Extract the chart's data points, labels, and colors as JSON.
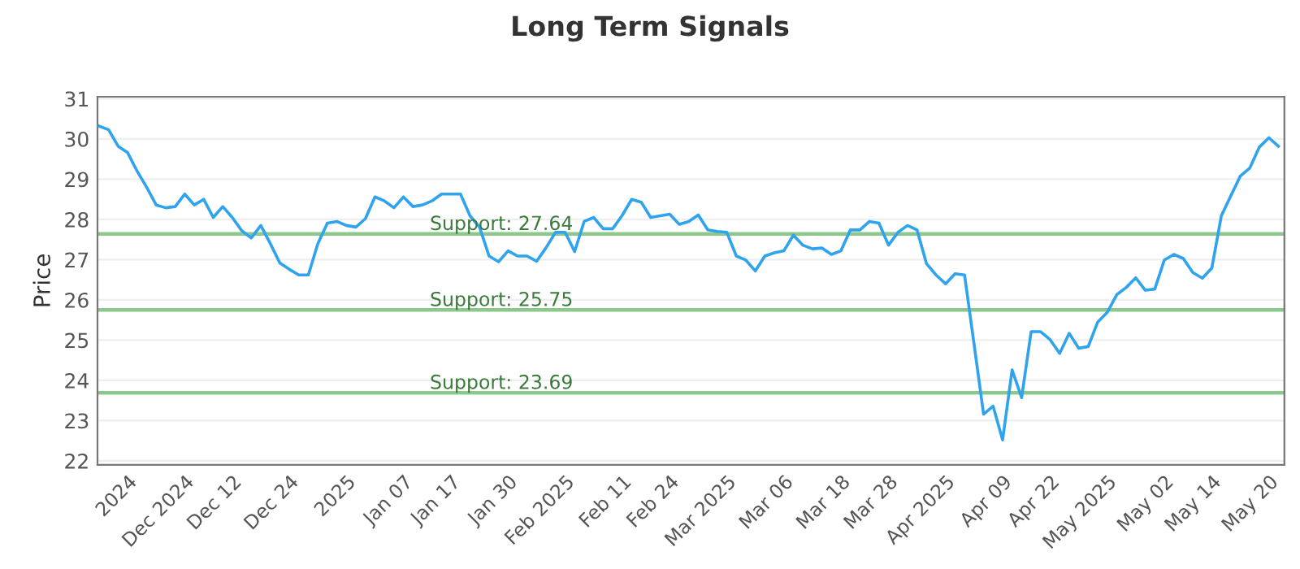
{
  "chart_data": {
    "type": "line",
    "title": "Long Term Signals",
    "ylabel": "Price",
    "categories": [
      null,
      null,
      null,
      "2024",
      null,
      null,
      null,
      null,
      null,
      "Dec 2024",
      null,
      null,
      null,
      null,
      "Dec 12",
      null,
      null,
      null,
      null,
      null,
      "Dec 24",
      null,
      null,
      null,
      null,
      null,
      "2025",
      null,
      null,
      null,
      null,
      null,
      "Jan 07",
      null,
      null,
      null,
      null,
      "Jan 17",
      null,
      null,
      null,
      null,
      null,
      "Jan 30",
      null,
      null,
      null,
      null,
      null,
      "Feb 2025",
      null,
      null,
      null,
      null,
      null,
      "Feb 11",
      null,
      null,
      null,
      null,
      "Feb 24",
      null,
      null,
      null,
      null,
      null,
      "Mar 2025",
      null,
      null,
      null,
      null,
      null,
      "Mar 06",
      null,
      null,
      null,
      null,
      null,
      "Mar 18",
      null,
      null,
      null,
      null,
      "Mar 28",
      null,
      null,
      null,
      null,
      null,
      "Apr 2025",
      null,
      null,
      null,
      null,
      null,
      "Apr 09",
      null,
      null,
      null,
      null,
      "Apr 22",
      null,
      null,
      null,
      null,
      null,
      "May 2025",
      null,
      null,
      null,
      null,
      null,
      "May 02",
      null,
      null,
      null,
      null,
      "May 14",
      null,
      null,
      null,
      null,
      null,
      "May 20",
      null
    ],
    "series": [
      {
        "color": "#2fa3ee",
        "values": [
          30.32,
          30.23,
          29.82,
          29.66,
          29.2,
          28.8,
          28.36,
          28.29,
          28.32,
          28.63,
          28.36,
          28.5,
          28.05,
          28.32,
          28.05,
          27.72,
          27.54,
          27.85,
          27.4,
          26.92,
          26.76,
          26.62,
          26.62,
          27.4,
          27.91,
          27.95,
          27.85,
          27.81,
          28.02,
          28.56,
          28.46,
          28.29,
          28.56,
          28.32,
          28.36,
          28.46,
          28.63,
          28.63,
          28.63,
          28.09,
          27.81,
          27.09,
          26.95,
          27.22,
          27.09,
          27.09,
          26.96,
          27.3,
          27.68,
          27.68,
          27.2,
          27.95,
          28.05,
          27.77,
          27.77,
          28.1,
          28.5,
          28.43,
          28.05,
          28.09,
          28.13,
          27.88,
          27.95,
          28.11,
          27.74,
          27.7,
          27.68,
          27.09,
          26.99,
          26.72,
          27.09,
          27.17,
          27.22,
          27.61,
          27.36,
          27.27,
          27.29,
          27.13,
          27.22,
          27.74,
          27.74,
          27.95,
          27.91,
          27.36,
          27.68,
          27.85,
          27.74,
          26.9,
          26.62,
          26.4,
          26.65,
          26.62,
          24.9,
          23.16,
          23.36,
          22.52,
          24.26,
          23.57,
          25.21,
          25.21,
          25.01,
          24.67,
          25.17,
          24.8,
          24.84,
          25.45,
          25.69,
          26.13,
          26.31,
          26.55,
          26.24,
          26.27,
          26.99,
          27.13,
          27.03,
          26.68,
          26.54,
          26.79,
          28.09,
          28.59,
          29.08,
          29.28,
          29.8,
          30.03,
          29.82
        ]
      }
    ],
    "ylim": [
      21.9,
      31.05
    ],
    "yticks": [
      22,
      23,
      24,
      25,
      26,
      27,
      28,
      29,
      30,
      31
    ],
    "ref_lines": [
      {
        "axis": "y",
        "value": 27.64,
        "label": "Support: 27.64",
        "color": "#8cc78c"
      },
      {
        "axis": "y",
        "value": 25.75,
        "label": "Support: 25.75",
        "color": "#8cc78c"
      },
      {
        "axis": "y",
        "value": 23.69,
        "label": "Support: 23.69",
        "color": "#8cc78c"
      }
    ],
    "grid": "y",
    "marker": "none",
    "line_style": "solid"
  }
}
